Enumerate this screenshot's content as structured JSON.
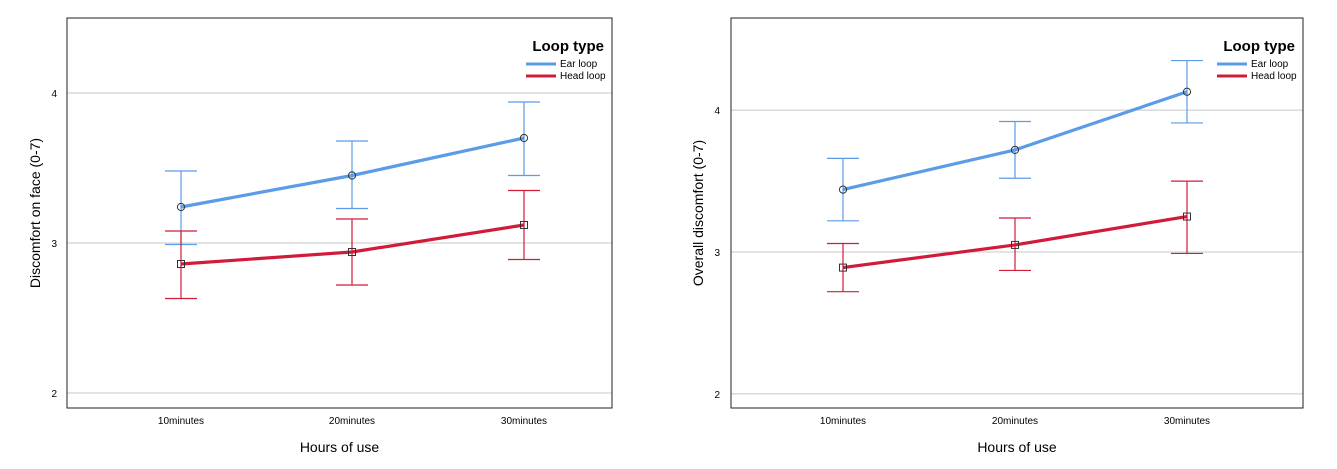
{
  "colors": {
    "ear": "#5b9be8",
    "head": "#d01c3a",
    "grid": "#c8c8c8",
    "frame": "#222222"
  },
  "chart_data": [
    {
      "type": "line",
      "ylabel": "Discomfort on face (0-7)",
      "xlabel": "Hours of use",
      "categories": [
        "10minutes",
        "20minutes",
        "30minutes"
      ],
      "ylim": [
        1.9,
        4.5
      ],
      "yticks": [
        2,
        3,
        4
      ],
      "grid": true,
      "legend": {
        "title": "Loop type",
        "position": "top-right"
      },
      "series": [
        {
          "name": "Ear loop",
          "color": "#5b9be8",
          "marker": "circle",
          "values": [
            3.24,
            3.45,
            3.7
          ],
          "lower": [
            2.99,
            3.23,
            3.45
          ],
          "upper": [
            3.48,
            3.68,
            3.94
          ]
        },
        {
          "name": "Head loop",
          "color": "#d01c3a",
          "marker": "square",
          "values": [
            2.86,
            2.94,
            3.12
          ],
          "lower": [
            2.63,
            2.72,
            2.89
          ],
          "upper": [
            3.08,
            3.16,
            3.35
          ]
        }
      ]
    },
    {
      "type": "line",
      "ylabel": "Overall discomfort (0-7)",
      "xlabel": "Hours of use",
      "categories": [
        "10minutes",
        "20minutes",
        "30minutes"
      ],
      "ylim": [
        1.9,
        4.65
      ],
      "yticks": [
        2,
        3,
        4
      ],
      "grid": true,
      "legend": {
        "title": "Loop type",
        "position": "top-right"
      },
      "series": [
        {
          "name": "Ear loop",
          "color": "#5b9be8",
          "marker": "circle",
          "values": [
            3.44,
            3.72,
            4.13
          ],
          "lower": [
            3.22,
            3.52,
            3.91
          ],
          "upper": [
            3.66,
            3.92,
            4.35
          ]
        },
        {
          "name": "Head loop",
          "color": "#d01c3a",
          "marker": "square",
          "values": [
            2.89,
            3.05,
            3.25
          ],
          "lower": [
            2.72,
            2.87,
            2.99
          ],
          "upper": [
            3.06,
            3.24,
            3.5
          ]
        }
      ]
    }
  ]
}
